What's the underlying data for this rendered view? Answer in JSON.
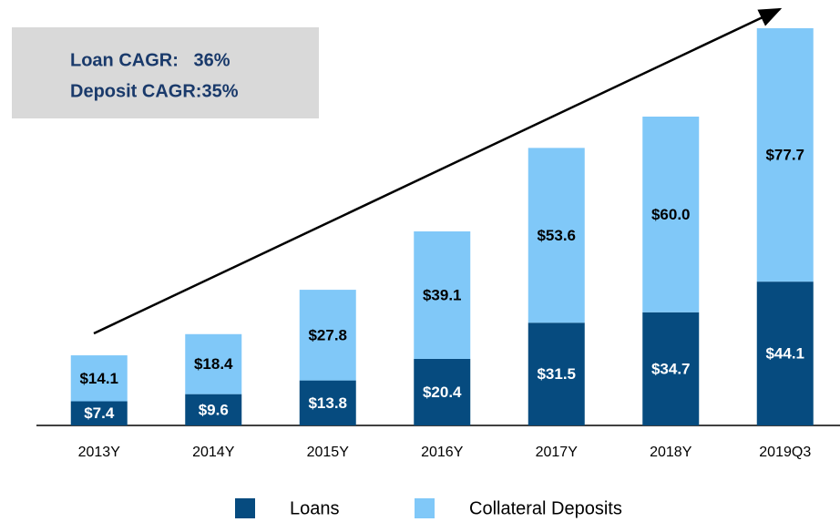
{
  "chart_data": {
    "type": "stacked_bar",
    "annotations": [
      "Loan CAGR:   36%",
      "Deposit CAGR:35%"
    ],
    "categories": [
      "2013Y",
      "2014Y",
      "2015Y",
      "2016Y",
      "2017Y",
      "2018Y",
      "2019Q3"
    ],
    "series": [
      {
        "name": "Loans",
        "color": "#064b7f",
        "values": [
          7.4,
          9.6,
          13.8,
          20.4,
          31.5,
          34.7,
          44.1
        ],
        "value_labels": [
          "$7.4",
          "$9.6",
          "$13.8",
          "$20.4",
          "$31.5",
          "$34.7",
          "$44.1"
        ]
      },
      {
        "name": "Collateral Deposits",
        "color": "#80c8f8",
        "values": [
          14.1,
          18.4,
          27.8,
          39.1,
          53.6,
          60.0,
          77.7
        ],
        "value_labels": [
          "$14.1",
          "$18.4",
          "$27.8",
          "$39.1",
          "$53.6",
          "$60.0",
          "$77.7"
        ]
      }
    ]
  }
}
